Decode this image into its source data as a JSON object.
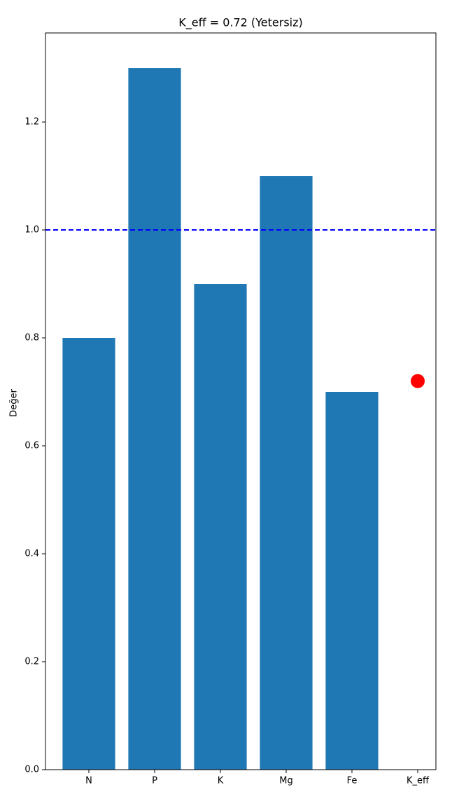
{
  "chart_data": {
    "type": "bar",
    "title": "K_eff = 0.72 (Yetersiz)",
    "y_label": "Değer",
    "categories": [
      "N",
      "P",
      "K",
      "Mg",
      "Fe",
      "K_eff"
    ],
    "series": [
      {
        "type": "bar",
        "color": "#1f77b4",
        "values": [
          0.8,
          1.3,
          0.9,
          1.1,
          0.7,
          null
        ]
      },
      {
        "type": "scatter",
        "color": "#ff0000",
        "values": [
          null,
          null,
          null,
          null,
          null,
          0.72
        ]
      }
    ],
    "hline": {
      "value": 1,
      "color": "#0000ff",
      "style": "dashed"
    },
    "ylim": [
      0,
      1.365
    ],
    "yticks": [
      {
        "value": 0,
        "label": "0.0"
      },
      0.2,
      0.4,
      0.6,
      0.8,
      {
        "value": 1,
        "label": "1.0"
      },
      1.2
    ]
  }
}
